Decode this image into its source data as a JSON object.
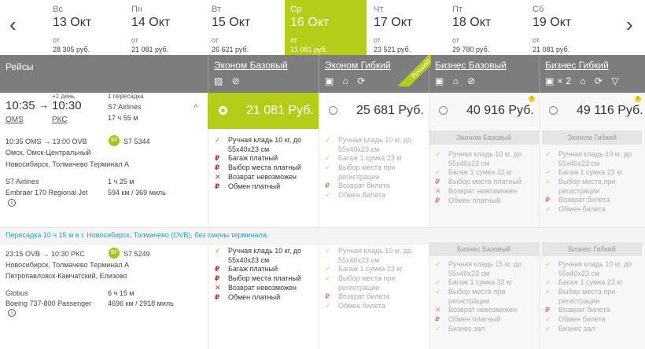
{
  "dates": [
    {
      "dow": "Вс",
      "date": "13 Окт",
      "from": "от",
      "price": "28 305 руб."
    },
    {
      "dow": "Пн",
      "date": "14 Окт",
      "from": "от",
      "price": "21 081 руб."
    },
    {
      "dow": "Вт",
      "date": "15 Окт",
      "from": "от",
      "price": "26 621 руб."
    },
    {
      "dow": "Ср",
      "date": "16 Окт",
      "from": "от",
      "price": "21 081 руб."
    },
    {
      "dow": "Чт",
      "date": "17 Окт",
      "from": "от",
      "price": "23 521 руб."
    },
    {
      "dow": "Пт",
      "date": "18 Окт",
      "from": "от",
      "price": "29 780 руб."
    },
    {
      "dow": "Сб",
      "date": "19 Окт",
      "from": "от",
      "price": "21 081 руб."
    }
  ],
  "nav": {
    "prev": "‹",
    "next": "›"
  },
  "header": {
    "flights_label": "Рейсы",
    "fares": [
      {
        "name": "Эконом Базовый",
        "icons": "▨ ⊘"
      },
      {
        "name": "Эконом Гибкий",
        "icons": "▣ ⌂ ⟳"
      },
      {
        "name": "Бизнес Базовый",
        "icons": "▣ ⌂ ⊘"
      },
      {
        "name": "Бизнес Гибкий",
        "icons": "▣×2 ⌂ ⟳ ▽"
      }
    ],
    "ribbon": "Лучший!"
  },
  "summary": {
    "dep_time": "10:35",
    "arr_time": "10:30",
    "next_day": "+1 день",
    "dep_code": "OMS",
    "arr_code": "РКС",
    "transfers": "1 пересадка",
    "airline": "S7 Airlines",
    "duration": "17 ч 55 м",
    "chevron": "^"
  },
  "prices": [
    "21 081 Руб.",
    "25 681 Руб.",
    "40 916 Руб.",
    "49 116 Руб."
  ],
  "seg1": {
    "times": "10:35 OMS → 13:00 OVB",
    "flight": "S7 5344",
    "logo": "S7",
    "from": "Омск, Омск-Центральный",
    "to": "Новосибирск, Толмачево Терминал А",
    "airline": "S7 Airlines",
    "duration": "1 ч 25 м",
    "aircraft": "Embraer 170 Regional Jet",
    "distance": "594 км / 369 миль",
    "info": "i"
  },
  "transfer": "Пересадка 10 ч 15 м в г. Новосибирск, Толмачево (OVB), без смены терминала.",
  "seg2": {
    "times": "23:15 OVB → 10:30 РКС",
    "flight": "S7 5249",
    "logo": "S7",
    "from": "Новосибирск, Толмачево Терминал А",
    "to": "Петропавловск-Камчатский, Елизово",
    "airline": "Globus",
    "duration": "6 ч 15 м",
    "aircraft": "Boeing 737-800 Passenger",
    "distance": "4696 км / 2918 миль",
    "info": "i"
  },
  "seg1_feats": {
    "eb": [
      [
        "✓",
        "Ручная кладь 10 кг, до"
      ],
      [
        "",
        "55x40x23 см"
      ],
      [
        "₽",
        "Багаж платный"
      ],
      [
        "₽",
        "Выбор места платный"
      ],
      [
        "✕",
        "Возврат невозможен"
      ],
      [
        "₽",
        "Обмен платный"
      ]
    ],
    "eg": [
      [
        "✓",
        "Ручная кладь 10 кг, до"
      ],
      [
        "",
        "55x40x23 см"
      ],
      [
        "✓",
        "Багаж 1 сумка 23 кг"
      ],
      [
        "✓",
        "Выбор места при"
      ],
      [
        "",
        "регистрации"
      ],
      [
        "₽",
        "Возврат билета"
      ],
      [
        "✓",
        "Обмен билета"
      ]
    ],
    "bb_title": "Эконом Базовый",
    "bb": [
      [
        "✓",
        "Ручная кладь 10 кг, до"
      ],
      [
        "",
        "55x40x23 см"
      ],
      [
        "✓",
        "Багаж 1 сумка 32 кг"
      ],
      [
        "₽",
        "Выбор места платный"
      ],
      [
        "✕",
        "Возврат невозможен"
      ],
      [
        "₽",
        "Обмен платный"
      ]
    ],
    "bg_title": "Эконом Гибкий",
    "bg": [
      [
        "✓",
        "Ручная кладь 10 кг, до"
      ],
      [
        "",
        "55x40x23 см"
      ],
      [
        "✓",
        "Багаж 1 сумка 23 кг"
      ],
      [
        "✓",
        "Выбор места при"
      ],
      [
        "",
        "регистрации"
      ],
      [
        "₽",
        "Возврат билета"
      ],
      [
        "✓",
        "Обмен билета"
      ]
    ]
  },
  "seg2_feats": {
    "eb": [
      [
        "✓",
        "Ручная кладь 10 кг, до"
      ],
      [
        "",
        "55x40x23 см"
      ],
      [
        "₽",
        "Багаж платный"
      ],
      [
        "₽",
        "Выбор места платный"
      ],
      [
        "✕",
        "Возврат невозможен"
      ],
      [
        "₽",
        "Обмен платный"
      ]
    ],
    "eg": [
      [
        "✓",
        "Ручная кладь 10 кг, до"
      ],
      [
        "",
        "55x40x23 см"
      ],
      [
        "✓",
        "Багаж 1 сумка 23 кг"
      ],
      [
        "✓",
        "Выбор места при"
      ],
      [
        "",
        "регистрации"
      ],
      [
        "₽",
        "Возврат билета"
      ],
      [
        "✓",
        "Обмен билета"
      ]
    ],
    "bb_title": "Бизнес Базовый",
    "bb": [
      [
        "✓",
        "Ручная кладь 15 кг, до"
      ],
      [
        "",
        "55x40x23 см"
      ],
      [
        "✓",
        "Багаж 1 сумка 32 кг"
      ],
      [
        "✓",
        "Выбор места при"
      ],
      [
        "",
        "регистрации"
      ],
      [
        "✕",
        "Возврат невозможен"
      ],
      [
        "₽",
        "Обмен платный"
      ],
      [
        "✓",
        "Бизнес зал"
      ]
    ],
    "bg_title": "Бизнес Гибкий",
    "bg": [
      [
        "✓",
        "Ручная кладь 10 кг, до"
      ],
      [
        "",
        "55x40x23 см"
      ],
      [
        "✓",
        "Багаж 1 сумка 23 кг"
      ],
      [
        "✓",
        "Выбор места при"
      ],
      [
        "",
        "регистрации"
      ],
      [
        "₽",
        "Возврат билета"
      ],
      [
        "✓",
        "Обмен билета"
      ],
      [
        "✓",
        "Бизнес зал"
      ]
    ]
  },
  "colors": {
    "accent": "#b5cc18",
    "header": "#7d7d7d",
    "link": "#2a9fbf"
  }
}
